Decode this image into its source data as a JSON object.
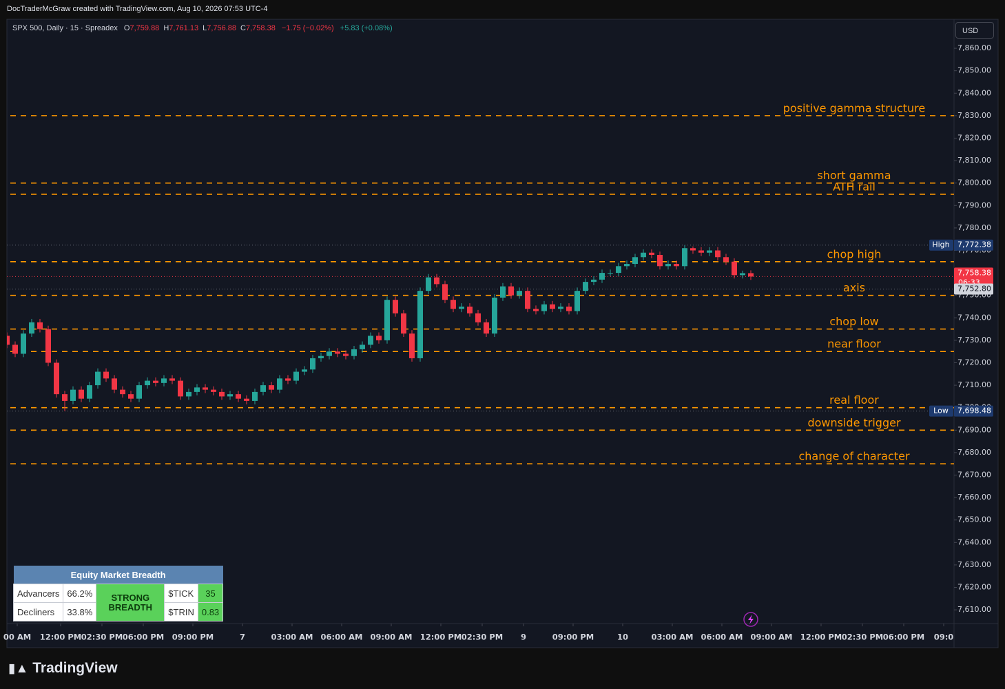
{
  "header": {
    "attribution": "DocTraderMcGraw created with TradingView.com, Aug 10, 2026 07:53 UTC-4"
  },
  "toolbar": {
    "currency": "USD"
  },
  "footer": {
    "brand": "TradingView"
  },
  "breadth_table": {
    "title": "Equity Market Breadth",
    "rows": [
      [
        "Advancers",
        "66.2%",
        "$TICK",
        "35"
      ],
      [
        "Decliners",
        "33.8%",
        "$TRIN",
        "0.83"
      ]
    ],
    "signal": "STRONG BREADTH"
  },
  "chart_data": {
    "type": "candlestick",
    "symbol": "SPX 500, Daily · 15 · Spreadex",
    "ohlc_legend": [
      {
        "key": "O",
        "value": "7,759.88"
      },
      {
        "key": "H",
        "value": "7,761.13"
      },
      {
        "key": "L",
        "value": "7,756.88"
      },
      {
        "key": "C",
        "value": "7,758.38"
      }
    ],
    "change": "−1.75 (−0.02%)",
    "change_ext": "+5.83 (+0.08%)",
    "up_color": "#26a69a",
    "down_color": "#f23645",
    "x": [
      0,
      2,
      4,
      6,
      8,
      10,
      12,
      14,
      16,
      18,
      20,
      22,
      24,
      26,
      28,
      30,
      32,
      34,
      36,
      38,
      40,
      42,
      44,
      46,
      48,
      50,
      52,
      54,
      56,
      58,
      60,
      62,
      64,
      66,
      68,
      70,
      72,
      74,
      76,
      78,
      80,
      82,
      84,
      86,
      88,
      90,
      92,
      94,
      96,
      98,
      100,
      102,
      104,
      106,
      108,
      110,
      112,
      114,
      116,
      118,
      120,
      122,
      124,
      126,
      128,
      130,
      132,
      134,
      136,
      138,
      140,
      142,
      144,
      146,
      148,
      150,
      152,
      154,
      156,
      158,
      160,
      162,
      164,
      166,
      168,
      170,
      172,
      174,
      176,
      178,
      180
    ],
    "open": [
      7732,
      7728,
      7724,
      7733,
      7738,
      7735,
      7720,
      7706,
      7703,
      7708,
      7704,
      7710,
      7716,
      7713,
      7708,
      7706,
      7704,
      7710,
      7712,
      7711,
      7713,
      7712,
      7705,
      7707,
      7709,
      7708,
      7707,
      7705,
      7706,
      7704,
      7703,
      7707,
      7710,
      7708,
      7713,
      7712,
      7716,
      7717,
      7722,
      7723,
      7725,
      7724,
      7723,
      7726,
      7728,
      7732,
      7730,
      7748,
      7742,
      7733,
      7722,
      7752,
      7758,
      7755,
      7748,
      7744,
      7745,
      7742,
      7738,
      7733,
      7749,
      7754,
      7750,
      7752,
      7744,
      7743,
      7746,
      7744,
      7745,
      7743,
      7752,
      7756,
      7757,
      7760,
      7760,
      7763,
      7764,
      7767,
      7769,
      7768,
      7763,
      7764,
      7763,
      7771,
      7770,
      7769,
      7770,
      7767,
      7765,
      7759,
      7759.88
    ],
    "high": [
      7733.5,
      7729.5,
      7734.5,
      7739.5,
      7739.5,
      7736.5,
      7721.5,
      7707.5,
      7709.5,
      7709.5,
      7711.5,
      7717.5,
      7717.5,
      7714.5,
      7709.5,
      7707.5,
      7711.5,
      7713.5,
      7713.5,
      7714.5,
      7714.5,
      7713.5,
      7708.5,
      7710.5,
      7710.5,
      7709.5,
      7708.5,
      7707.5,
      7707.5,
      7705.5,
      7708.5,
      7711.5,
      7711.5,
      7714.5,
      7714.5,
      7717.5,
      7718.5,
      7723.5,
      7724.5,
      7726.5,
      7726.5,
      7725.5,
      7727.5,
      7729.5,
      7733.5,
      7733.5,
      7749.5,
      7749.5,
      7743.5,
      7734.5,
      7753.5,
      7759.5,
      7759.5,
      7756.5,
      7749.5,
      7746.5,
      7746.5,
      7743.5,
      7739.5,
      7750.5,
      7755.5,
      7755.5,
      7753.5,
      7753.5,
      7745.5,
      7747.5,
      7747.5,
      7746.5,
      7746.5,
      7753.5,
      7757.5,
      7758.5,
      7761.5,
      7761.5,
      7764.5,
      7765.5,
      7768.5,
      7770.5,
      7770.5,
      7769.5,
      7765.5,
      7765.5,
      7772.38,
      7771.8,
      7771.5,
      7771.5,
      7771.5,
      7768.5,
      7766.5,
      7761,
      7761.13
    ],
    "low": [
      7726.5,
      7722.5,
      7722.5,
      7731.5,
      7733.5,
      7718.5,
      7704.5,
      7698.48,
      7701.5,
      7702.5,
      7702.5,
      7708.5,
      7711.5,
      7706.5,
      7704.5,
      7702.5,
      7702.5,
      7708.5,
      7709.5,
      7709.5,
      7710.5,
      7703.5,
      7703.5,
      7705.5,
      7706.5,
      7705.5,
      7703.5,
      7703.5,
      7702.5,
      7701.5,
      7701.5,
      7705.5,
      7706.5,
      7706.5,
      7710.5,
      7710.5,
      7714.5,
      7715.5,
      7720.5,
      7721.5,
      7722.5,
      7721.5,
      7721.5,
      7724.5,
      7726.5,
      7728.5,
      7728.5,
      7740.5,
      7731.5,
      7720.5,
      7720.5,
      7750.5,
      7753.5,
      7746.5,
      7742.5,
      7742.5,
      7740.5,
      7736.5,
      7731.5,
      7731.5,
      7747.5,
      7748.5,
      7748.5,
      7742.5,
      7741.5,
      7741.5,
      7742.5,
      7742.5,
      7741.5,
      7741.5,
      7750.5,
      7754.5,
      7755.5,
      7758.5,
      7758.5,
      7761.5,
      7762.5,
      7765.5,
      7766.5,
      7761.5,
      7761.5,
      7761.5,
      7761.5,
      7768.5,
      7767.5,
      7767.5,
      7765.5,
      7763.5,
      7757.5,
      7757.5,
      7756.88
    ],
    "close": [
      7728,
      7724,
      7733,
      7738,
      7735,
      7720,
      7706,
      7703,
      7708,
      7704,
      7710,
      7716,
      7713,
      7708,
      7706,
      7704,
      7710,
      7712,
      7711,
      7713,
      7712,
      7705,
      7707,
      7709,
      7708,
      7707,
      7705,
      7706,
      7704,
      7703,
      7707,
      7710,
      7708,
      7713,
      7712,
      7716,
      7717,
      7722,
      7723,
      7725,
      7724,
      7723,
      7726,
      7728,
      7732,
      7730,
      7748,
      7742,
      7733,
      7722,
      7752,
      7758,
      7755,
      7748,
      7744,
      7745,
      7742,
      7738,
      7733,
      7749,
      7754,
      7750,
      7752,
      7744,
      7743,
      7746,
      7744,
      7745,
      7743,
      7752,
      7756,
      7757,
      7760,
      7760,
      7763,
      7764,
      7767,
      7769,
      7768,
      7763,
      7764,
      7763,
      7771,
      7770,
      7769,
      7770,
      7767,
      7765,
      7759,
      7759.88,
      7758.38
    ],
    "xlim": [
      0,
      229.17
    ],
    "xticks": [
      {
        "value": 2.5,
        "label": "00 AM"
      },
      {
        "value": 13,
        "label": "12:00 PM"
      },
      {
        "value": 23,
        "label": "02:30 PM"
      },
      {
        "value": 33,
        "label": "06:00 PM"
      },
      {
        "value": 45,
        "label": "09:00 PM"
      },
      {
        "value": 57,
        "label": "7"
      },
      {
        "value": 69,
        "label": "03:00 AM"
      },
      {
        "value": 81,
        "label": "06:00 AM"
      },
      {
        "value": 93,
        "label": "09:00 AM"
      },
      {
        "value": 105,
        "label": "12:00 PM"
      },
      {
        "value": 115,
        "label": "02:30 PM"
      },
      {
        "value": 125,
        "label": "9"
      },
      {
        "value": 137,
        "label": "09:00 PM"
      },
      {
        "value": 149,
        "label": "10"
      },
      {
        "value": 161,
        "label": "03:00 AM"
      },
      {
        "value": 173,
        "label": "06:00 AM"
      },
      {
        "value": 185,
        "label": "09:00 AM"
      },
      {
        "value": 197,
        "label": "12:00 PM"
      },
      {
        "value": 207,
        "label": "02:30 PM"
      },
      {
        "value": 217,
        "label": "06:00 PM"
      },
      {
        "value": 226.67,
        "label": "09:0"
      }
    ],
    "ylim": [
      7603.9,
      7872.9
    ],
    "yticks": [
      {
        "value": 7610,
        "label": "7,610.00"
      },
      {
        "value": 7620,
        "label": "7,620.00"
      },
      {
        "value": 7630,
        "label": "7,630.00"
      },
      {
        "value": 7640,
        "label": "7,640.00"
      },
      {
        "value": 7650,
        "label": "7,650.00"
      },
      {
        "value": 7660,
        "label": "7,660.00"
      },
      {
        "value": 7670,
        "label": "7,670.00"
      },
      {
        "value": 7680,
        "label": "7,680.00"
      },
      {
        "value": 7690,
        "label": "7,690.00"
      },
      {
        "value": 7700,
        "label": "7,700.00"
      },
      {
        "value": 7710,
        "label": "7,710.00"
      },
      {
        "value": 7720,
        "label": "7,720.00"
      },
      {
        "value": 7730,
        "label": "7,730.00"
      },
      {
        "value": 7740,
        "label": "7,740.00"
      },
      {
        "value": 7750,
        "label": "7,750.00"
      },
      {
        "value": 7760,
        "label": "7,760.00"
      },
      {
        "value": 7770,
        "label": "7,770.00"
      },
      {
        "value": 7780,
        "label": "7,780.00"
      },
      {
        "value": 7790,
        "label": "7,790.00"
      },
      {
        "value": 7800,
        "label": "7,800.00"
      },
      {
        "value": 7810,
        "label": "7,810.00"
      },
      {
        "value": 7820,
        "label": "7,820.00"
      },
      {
        "value": 7830,
        "label": "7,830.00"
      },
      {
        "value": 7840,
        "label": "7,840.00"
      },
      {
        "value": 7850,
        "label": "7,850.00"
      },
      {
        "value": 7860,
        "label": "7,860.00"
      }
    ],
    "level_color": "#ff9800",
    "levels": [
      {
        "name": "positive gamma structure",
        "value": 7830
      },
      {
        "name": "short gamma",
        "value": 7800
      },
      {
        "name": "ATH rail",
        "value": 7795
      },
      {
        "name": "chop high",
        "value": 7765
      },
      {
        "name": "axis",
        "value": 7750
      },
      {
        "name": "chop low",
        "value": 7735
      },
      {
        "name": "near floor",
        "value": 7725
      },
      {
        "name": "real floor",
        "value": 7700
      },
      {
        "name": "downside trigger",
        "value": 7690
      },
      {
        "name": "change of character",
        "value": 7675
      }
    ],
    "price_tags": [
      {
        "name": "High",
        "value": 7772.38,
        "label": "7,772.38",
        "color": "#1e3a6e"
      },
      {
        "value": 7758.38,
        "label": "7,758.38",
        "countdown": "06:33",
        "color": "#f23645"
      },
      {
        "value": 7752.8,
        "label": "7,752.80",
        "color": "#d1d4dc"
      },
      {
        "name": "Low",
        "value": 7698.48,
        "label": "7,698.48",
        "color": "#1e3a6e"
      }
    ]
  }
}
